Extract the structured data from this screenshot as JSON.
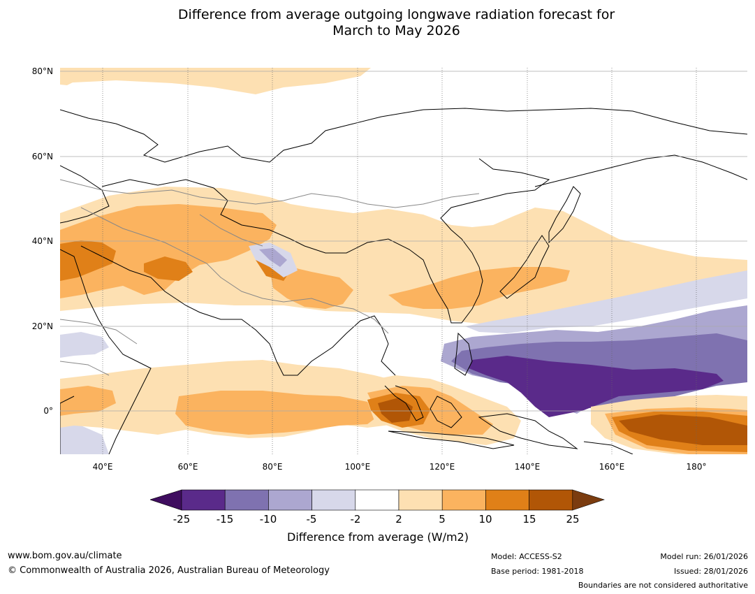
{
  "title": {
    "line1": "Difference from average outgoing longwave radiation forecast for",
    "line2": "March to May 2026"
  },
  "map": {
    "lat_labels": [
      "80°N",
      "60°N",
      "40°N",
      "20°N",
      "0°"
    ],
    "lon_labels": [
      "40°E",
      "60°E",
      "80°E",
      "100°E",
      "120°E",
      "140°E",
      "160°E",
      "180°"
    ],
    "palette": {
      "lt_m25": "#3f0d5f",
      "m25_m15": "#5a2a8a",
      "m15_m10": "#7f72b0",
      "m10_m5": "#aca7d0",
      "m5_m2": "#d7d8ea",
      "m2_2": "#ffffff",
      "p2_p5": "#fde0b2",
      "p5_p10": "#fbb35f",
      "p10_p15": "#e08018",
      "p15_p25": "#b15606",
      "gt_p25": "#7b3c0f"
    }
  },
  "colorbar": {
    "ticks": [
      "-25",
      "-15",
      "-10",
      "-5",
      "-2",
      "2",
      "5",
      "10",
      "15",
      "25"
    ],
    "caption": "Difference from average (W/m2)"
  },
  "footer": {
    "website": "www.bom.gov.au/climate",
    "copyright": "© Commonwealth of Australia 2026, Australian Bureau of Meteorology",
    "model": "Model: ACCESS-S2",
    "base_period": "Base period: 1981-2018",
    "model_run": "Model run: 26/01/2026",
    "issued": "Issued: 28/01/2026",
    "disclaimer": "Boundaries are not considered authoritative"
  }
}
